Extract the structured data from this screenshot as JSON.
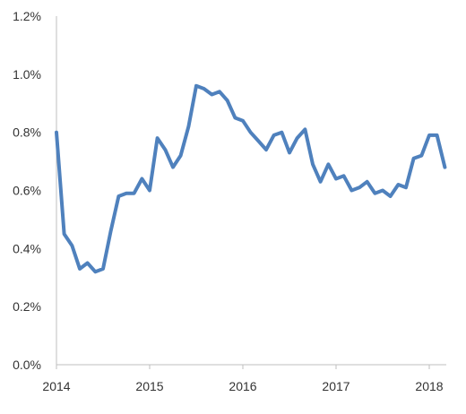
{
  "chart_data": {
    "type": "line",
    "title": "",
    "xlabel": "",
    "ylabel": "",
    "ylim": [
      0,
      1.2
    ],
    "yticks": [
      0,
      0.2,
      0.4,
      0.6,
      0.8,
      1.0,
      1.2
    ],
    "ytick_labels": [
      "0.0%",
      "0.2%",
      "0.4%",
      "0.6%",
      "0.8%",
      "1.0%",
      "1.2%"
    ],
    "xlim": [
      2014,
      2018.17
    ],
    "xticks": [
      2014,
      2015,
      2016,
      2017,
      2018
    ],
    "xtick_labels": [
      "2014",
      "2015",
      "2016",
      "2017",
      "2018"
    ],
    "grid": false,
    "legend": "none",
    "colors": {
      "line": "#4f81bd",
      "axis": "#bfbfbf",
      "text": "#333333"
    },
    "series": [
      {
        "x": [
          2014.0,
          2014.083,
          2014.167,
          2014.25,
          2014.333,
          2014.417,
          2014.5,
          2014.583,
          2014.667,
          2014.75,
          2014.833,
          2014.917,
          2015.0,
          2015.083,
          2015.167,
          2015.25,
          2015.333,
          2015.417,
          2015.5,
          2015.583,
          2015.667,
          2015.75,
          2015.833,
          2015.917,
          2016.0,
          2016.083,
          2016.167,
          2016.25,
          2016.333,
          2016.417,
          2016.5,
          2016.583,
          2016.667,
          2016.75,
          2016.833,
          2016.917,
          2017.0,
          2017.083,
          2017.167,
          2017.25,
          2017.333,
          2017.417,
          2017.5,
          2017.583,
          2017.667,
          2017.75,
          2017.833,
          2017.917,
          2018.0,
          2018.083,
          2018.167
        ],
        "values": [
          0.8,
          0.45,
          0.41,
          0.33,
          0.35,
          0.32,
          0.33,
          0.46,
          0.58,
          0.59,
          0.59,
          0.64,
          0.6,
          0.78,
          0.74,
          0.68,
          0.72,
          0.82,
          0.96,
          0.95,
          0.93,
          0.94,
          0.91,
          0.85,
          0.84,
          0.8,
          0.77,
          0.74,
          0.79,
          0.8,
          0.73,
          0.78,
          0.81,
          0.69,
          0.63,
          0.69,
          0.64,
          0.65,
          0.6,
          0.61,
          0.63,
          0.59,
          0.6,
          0.58,
          0.62,
          0.61,
          0.71,
          0.72,
          0.79,
          0.79,
          0.68
        ]
      }
    ]
  }
}
